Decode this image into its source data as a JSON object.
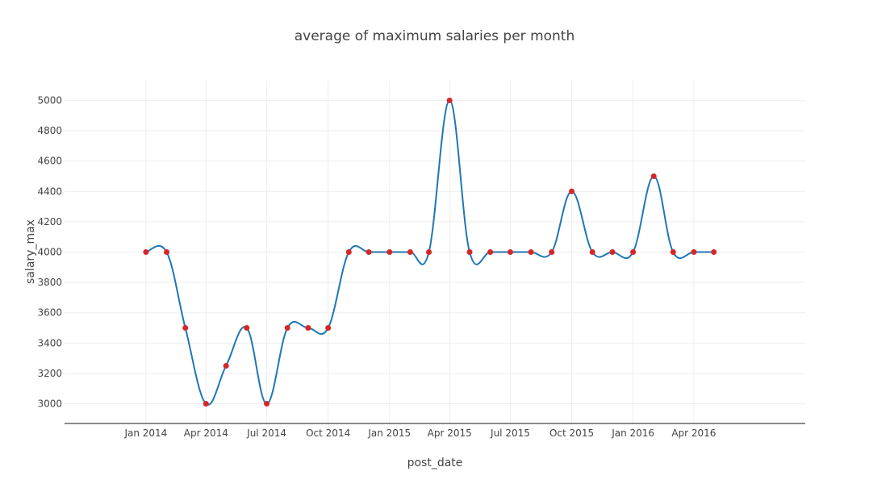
{
  "chart_data": {
    "type": "line",
    "title": "average of maximum salaries  per month",
    "xlabel": "post_date",
    "ylabel": "salary_max",
    "x_ticks": [
      "Jan 2014",
      "Apr 2014",
      "Jul 2014",
      "Oct 2014",
      "Jan 2015",
      "Apr 2015",
      "Jul 2015",
      "Oct 2015",
      "Jan 2016",
      "Apr 2016"
    ],
    "y_ticks": [
      3000,
      3200,
      3400,
      3600,
      3800,
      4000,
      4200,
      4400,
      4600,
      4800,
      5000
    ],
    "xlim": [
      "2013-09-01",
      "2016-09-15"
    ],
    "ylim": [
      2870,
      5130
    ],
    "grid": true,
    "line_shape": "spline",
    "colors": {
      "line": "#1f77b4",
      "marker": "#d62728"
    },
    "series": [
      {
        "x": [
          "2014-01-01",
          "2014-02-01",
          "2014-03-01",
          "2014-04-01",
          "2014-05-01",
          "2014-06-01",
          "2014-07-01",
          "2014-08-01",
          "2014-09-01",
          "2014-10-01",
          "2014-11-01",
          "2014-12-01",
          "2015-01-01",
          "2015-02-01",
          "2015-03-01",
          "2015-04-01",
          "2015-05-01",
          "2015-06-01",
          "2015-07-01",
          "2015-08-01",
          "2015-09-01",
          "2015-10-01",
          "2015-11-01",
          "2015-12-01",
          "2016-01-01",
          "2016-02-01",
          "2016-03-01",
          "2016-04-01",
          "2016-05-01"
        ],
        "y": [
          4000,
          4000,
          3500,
          3000,
          3250,
          3500,
          3000,
          3500,
          3500,
          3500,
          4000,
          4000,
          4000,
          4000,
          4000,
          5000,
          4000,
          4000,
          4000,
          4000,
          4000,
          4400,
          4000,
          4000,
          4000,
          4500,
          4000,
          4000,
          4000
        ]
      }
    ]
  }
}
